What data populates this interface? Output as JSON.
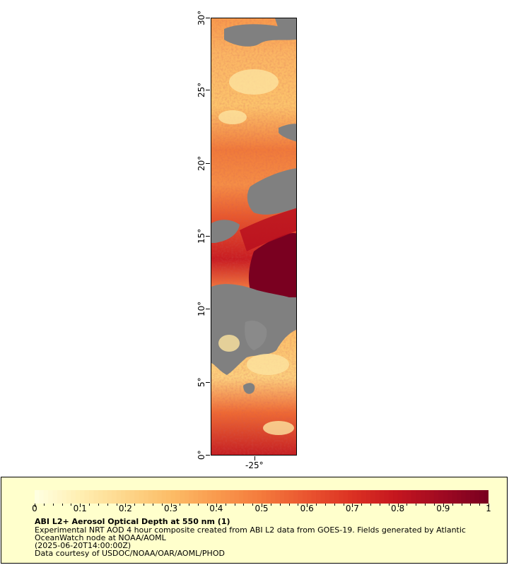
{
  "map": {
    "y_axis": {
      "ticks": [
        "0°",
        "5°",
        "10°",
        "15°",
        "20°",
        "25°",
        "30°"
      ],
      "values": [
        0,
        5,
        10,
        15,
        20,
        25,
        30
      ],
      "range": [
        0,
        30
      ]
    },
    "x_axis": {
      "ticks": [
        "-25°"
      ],
      "values": [
        -25
      ],
      "range": [
        -28,
        -22
      ]
    },
    "colors": {
      "missing_data": "#808080",
      "frame": "#000000"
    }
  },
  "colorbar": {
    "ticks": [
      "0",
      "0.1",
      "0.2",
      "0.3",
      "0.4",
      "0.5",
      "0.6",
      "0.7",
      "0.8",
      "0.9",
      "1"
    ],
    "range": [
      0,
      1
    ],
    "colors": [
      "#ffffe0",
      "#ffeeb0",
      "#fdd68a",
      "#fcbc66",
      "#f99a4e",
      "#f47a3c",
      "#ea5530",
      "#dc3223",
      "#c5161f",
      "#a00a22",
      "#7a0020"
    ]
  },
  "legend": {
    "title": "ABI L2+ Aerosol Optical Depth at 550 nm (1)",
    "line1": "Experimental NRT AOD 4 hour composite created from ABI L2 data from GOES-19. Fields generated by Atlantic OceanWatch node at NOAA/AOML",
    "line2": "(2025-06-20T14:00:00Z)",
    "line3": "Data courtesy of USDOC/NOAA/OAR/AOML/PHOD"
  }
}
